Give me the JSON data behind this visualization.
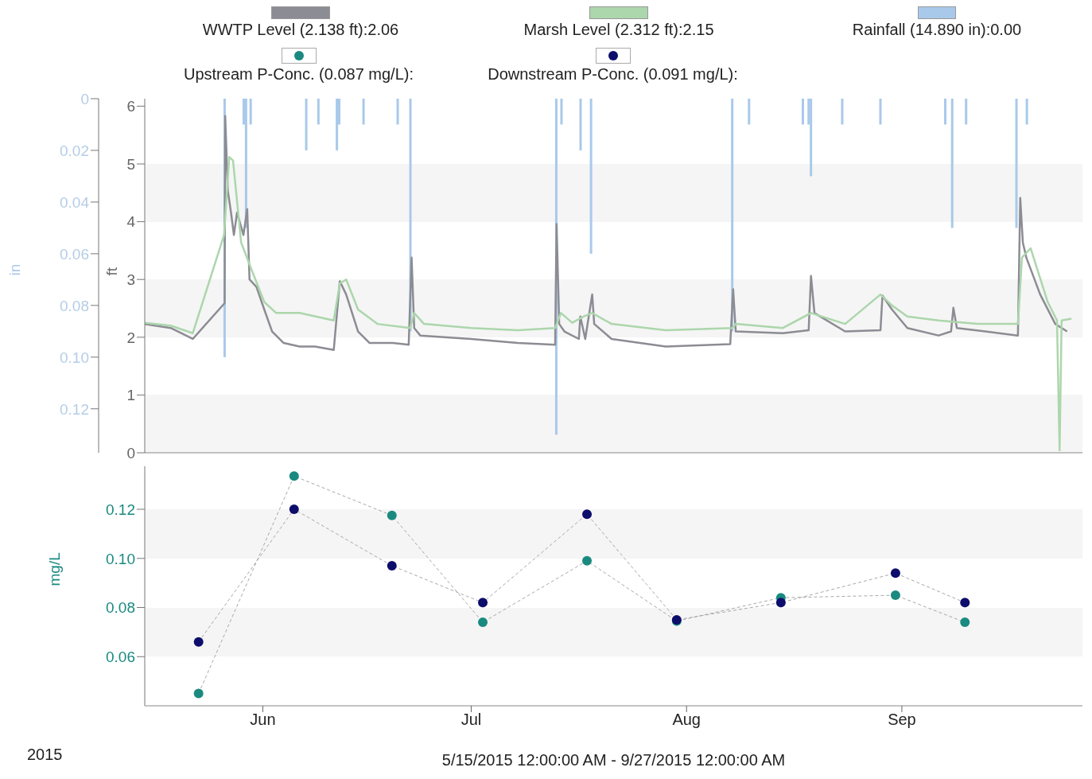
{
  "chart_data": [
    {
      "type": "line",
      "ylabel": "ft",
      "y2label": "in",
      "legend": "top",
      "tick_labels": "y",
      "xlim": [
        "2015-05-15",
        "2015-09-27"
      ],
      "ylim": [
        0,
        6.13
      ],
      "yticks": [
        0,
        1,
        2,
        3,
        4,
        5,
        6
      ],
      "y2lim": [
        0.137,
        0
      ],
      "y2ticks": [
        0,
        0.02,
        0.04,
        0.06,
        0.08,
        {
          "value": 0.1,
          "label": "0.10"
        },
        0.12
      ],
      "series": [
        {
          "name": "WWTP Level (2.138 ft):2.06",
          "color": "#8c8c94",
          "x": [
            "2015-05-15T00:00",
            "2015-05-18T18:00",
            "2015-05-21T22:00",
            "2015-05-26T12:00",
            "2015-05-26T14:00",
            "2015-05-26T23:00",
            "2015-05-27T10:00",
            "2015-05-27T20:00",
            "2015-05-28T07:00",
            "2015-05-29T05:00",
            "2015-05-29T18:00",
            "2015-05-30T02:00",
            "2015-05-31T02:00",
            "2015-06-01T05:00",
            "2015-06-02T08:00",
            "2015-06-04T00:00",
            "2015-06-06T07:00",
            "2015-06-08T12:00",
            "2015-06-11T05:00",
            "2015-06-12T02:00",
            "2015-06-13T00:00",
            "2015-06-14T17:00",
            "2015-06-16T09:00",
            "2015-06-19T17:00",
            "2015-06-22T00:00",
            "2015-06-22T10:00",
            "2015-06-22T19:00",
            "2015-06-23T16:00",
            "2015-07-01T00:00",
            "2015-07-07T17:00",
            "2015-07-13T02:00",
            "2015-07-13T07:00",
            "2015-07-13T16:00",
            "2015-07-14T10:00",
            "2015-07-16T12:00",
            "2015-07-16T17:00",
            "2015-07-17T10:00",
            "2015-07-18T10:00",
            "2015-07-18T17:00",
            "2015-07-21T05:00",
            "2015-07-29T00:00",
            "2015-08-07T07:00",
            "2015-08-07T17:00",
            "2015-08-08T02:00",
            "2015-08-14T21:00",
            "2015-08-18T14:00",
            "2015-08-18T22:00",
            "2015-08-19T10:00",
            "2015-08-23T20:00",
            "2015-08-28T22:00",
            "2015-08-29T05:00",
            "2015-08-30T14:00",
            "2015-09-01T19:00",
            "2015-09-06T07:00",
            "2015-09-08T02:00",
            "2015-09-08T10:00",
            "2015-09-08T22:00",
            "2015-09-13T00:00",
            "2015-09-17T17:00",
            "2015-09-18T01:00",
            "2015-09-18T10:00",
            "2015-09-18T22:00",
            "2015-09-20T22:00",
            "2015-09-23T02:00",
            "2015-09-24T19:00"
          ],
          "values": [
            2.23,
            2.16,
            1.97,
            2.59,
            5.83,
            4.54,
            4.16,
            3.77,
            4.16,
            3.77,
            4.22,
            3.0,
            2.87,
            2.48,
            2.1,
            1.9,
            1.84,
            1.84,
            1.78,
            2.97,
            2.74,
            2.1,
            1.9,
            1.9,
            1.87,
            3.38,
            2.16,
            2.03,
            1.97,
            1.9,
            1.87,
            3.96,
            2.23,
            2.1,
            1.97,
            2.36,
            1.97,
            2.74,
            2.23,
            1.97,
            1.84,
            1.88,
            2.83,
            2.1,
            2.07,
            2.12,
            3.06,
            2.42,
            2.1,
            2.12,
            2.72,
            2.48,
            2.16,
            2.03,
            2.1,
            2.51,
            2.16,
            2.1,
            2.03,
            4.41,
            3.64,
            3.38,
            2.74,
            2.23,
            2.1
          ]
        },
        {
          "name": "Marsh Level (2.312 ft):2.15",
          "color": "#acd6ac",
          "x": [
            "2015-05-15T00:00",
            "2015-05-18T18:00",
            "2015-05-21T22:00",
            "2015-05-26T10:00",
            "2015-05-27T04:00",
            "2015-05-27T17:00",
            "2015-05-28T21:00",
            "2015-05-30T12:00",
            "2015-06-01T05:00",
            "2015-06-02T22:00",
            "2015-06-06T07:00",
            "2015-06-11T05:00",
            "2015-06-12T02:00",
            "2015-06-13T00:00",
            "2015-06-14T17:00",
            "2015-06-17T12:00",
            "2015-06-22T05:00",
            "2015-06-22T19:00",
            "2015-06-24T05:00",
            "2015-07-01T00:00",
            "2015-07-07T17:00",
            "2015-07-13T02:00",
            "2015-07-13T22:00",
            "2015-07-15T13:00",
            "2015-07-17T05:00",
            "2015-07-18T10:00",
            "2015-07-21T05:00",
            "2015-07-29T00:00",
            "2015-08-07T14:00",
            "2015-08-08T02:00",
            "2015-08-14T21:00",
            "2015-08-18T22:00",
            "2015-08-23T20:00",
            "2015-08-28T22:00",
            "2015-08-30T14:00",
            "2015-09-01T19:00",
            "2015-09-06T07:00",
            "2015-09-11T22:00",
            "2015-09-17T17:00",
            "2015-09-18T07:00",
            "2015-09-19T13:00",
            "2015-09-22T00:00",
            "2015-09-23T08:00",
            "2015-09-23T17:00",
            "2015-09-24T00:00",
            "2015-09-25T10:00"
          ],
          "values": [
            2.25,
            2.2,
            2.07,
            3.77,
            5.12,
            5.06,
            3.64,
            3.13,
            2.61,
            2.42,
            2.42,
            2.29,
            2.93,
            3.0,
            2.48,
            2.23,
            2.16,
            2.42,
            2.23,
            2.16,
            2.12,
            2.16,
            2.42,
            2.25,
            2.36,
            2.42,
            2.23,
            2.12,
            2.16,
            2.23,
            2.16,
            2.42,
            2.23,
            2.74,
            2.55,
            2.36,
            2.29,
            2.23,
            2.23,
            3.38,
            3.54,
            2.61,
            2.29,
            0.04,
            2.29,
            2.32
          ]
        },
        {
          "name": "Rainfall (14.890 in):0.00",
          "type": "bar",
          "axis": "y2",
          "color": "#a9c9ea",
          "x": [
            "2015-05-26T12:00",
            "2015-05-29T06:00",
            "2015-05-29T14:00",
            "2015-05-30T06:00",
            "2015-06-07T06:00",
            "2015-06-09T00:00",
            "2015-06-11T16:00",
            "2015-06-12T00:00",
            "2015-06-15T12:00",
            "2015-06-20T10:00",
            "2015-06-22T06:00",
            "2015-07-13T06:00",
            "2015-07-14T00:00",
            "2015-07-16T18:00",
            "2015-07-18T06:00",
            "2015-08-07T14:00",
            "2015-08-10T00:00",
            "2015-08-17T18:00",
            "2015-08-18T14:00",
            "2015-08-18T22:00",
            "2015-08-23T10:00",
            "2015-08-28T22:00",
            "2015-09-07T06:00",
            "2015-09-08T06:00",
            "2015-09-10T06:00",
            "2015-09-17T12:00",
            "2015-09-19T00:00"
          ],
          "values": [
            0.1,
            0.01,
            0.05,
            0.01,
            0.02,
            0.01,
            0.02,
            0.01,
            0.01,
            0.01,
            0.09,
            0.13,
            0.01,
            0.02,
            0.06,
            0.09,
            0.01,
            0.01,
            0.01,
            0.03,
            0.01,
            0.01,
            0.01,
            0.05,
            0.01,
            0.05,
            0.01
          ]
        }
      ]
    },
    {
      "type": "line",
      "ylabel": "mg/L",
      "xlabel": "5/15/2015 12:00:00 AM - 9/27/2015 12:00:00 AM",
      "legend": "top",
      "marker": "circle",
      "line_style": "dashed",
      "annotations": [
        "2015"
      ],
      "xlim": [
        "2015-05-15",
        "2015-09-27"
      ],
      "xticks": [
        {
          "value": "2015-06-01",
          "label": "Jun"
        },
        {
          "value": "2015-07-01",
          "label": "Jul"
        },
        {
          "value": "2015-08-01",
          "label": "Aug"
        },
        {
          "value": "2015-09-01",
          "label": "Sep"
        }
      ],
      "ylim": [
        0.04,
        0.1375
      ],
      "yticks": [
        0.06,
        0.08,
        {
          "value": 0.1,
          "label": "0.10"
        },
        0.12
      ],
      "x": [
        "2015-05-22T18:00",
        "2015-06-05T12:00",
        "2015-06-19T14:00",
        "2015-07-02T16:00",
        "2015-07-17T16:00",
        "2015-07-30T14:00",
        "2015-08-14T14:00",
        "2015-08-31T02:00",
        "2015-09-10T02:00"
      ],
      "series": [
        {
          "name": "Upstream P-Conc. (0.087 mg/L):",
          "color": "#1a8a80",
          "values": [
            0.045,
            0.1335,
            0.1175,
            0.074,
            0.099,
            0.0745,
            0.084,
            0.085,
            0.074
          ]
        },
        {
          "name": "Downstream P-Conc. (0.091 mg/L):",
          "color": "#0d0d6b",
          "values": [
            0.066,
            0.12,
            0.097,
            0.082,
            0.118,
            0.075,
            0.082,
            0.094,
            0.082
          ]
        }
      ]
    }
  ]
}
